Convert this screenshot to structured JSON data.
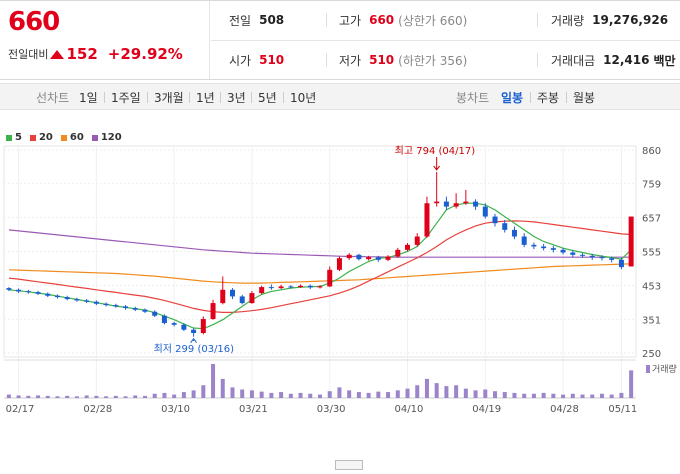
{
  "header": {
    "price": "660",
    "change_label": "전일대비",
    "change_value": "152",
    "change_pct": "+29.92%"
  },
  "stats": {
    "prev_label": "전일",
    "prev_value": "508",
    "high_label": "고가",
    "high_value": "660",
    "high_sub": "(상한가 660)",
    "volume_label": "거래량",
    "volume_value": "19,276,926",
    "open_label": "시가",
    "open_value": "510",
    "low_label": "저가",
    "low_value": "510",
    "low_sub": "(하한가 356)",
    "amount_label": "거래대금",
    "amount_value": "12,416",
    "amount_unit": "백만"
  },
  "tabs": {
    "line_label": "선차트",
    "line_periods": [
      "1일",
      "1주일",
      "3개월",
      "1년",
      "3년",
      "5년",
      "10년"
    ],
    "candle_label": "봉차트",
    "candle_periods": [
      "일봉",
      "주봉",
      "월봉"
    ],
    "active_candle": "일봉"
  },
  "colors": {
    "up": "#e0001a",
    "down": "#1a5fd0",
    "ma5": "#3cb24a",
    "ma20": "#e8413c",
    "ma60": "#f08c1e",
    "ma120": "#9b59b6",
    "volume": "#9b84c9"
  },
  "chart_data": {
    "type": "candlestick",
    "legend": [
      "5",
      "20",
      "60",
      "120"
    ],
    "y_ticks": [
      860,
      759,
      657,
      555,
      453,
      351,
      250
    ],
    "ylim": [
      250,
      860
    ],
    "x_ticks": [
      "02/17",
      "02/28",
      "03/10",
      "03/21",
      "03/30",
      "04/10",
      "04/19",
      "04/28",
      "05/11"
    ],
    "volume_label": "거래량",
    "annotations": {
      "high_label": "최고 794 (04/17)",
      "low_label": "최저 299 (03/16)"
    },
    "candles": [
      [
        445,
        440,
        448,
        436
      ],
      [
        440,
        435,
        444,
        430
      ],
      [
        436,
        433,
        440,
        428
      ],
      [
        433,
        428,
        437,
        424
      ],
      [
        428,
        422,
        432,
        418
      ],
      [
        422,
        418,
        426,
        414
      ],
      [
        418,
        412,
        422,
        408
      ],
      [
        412,
        408,
        416,
        404
      ],
      [
        408,
        404,
        412,
        400
      ],
      [
        404,
        398,
        408,
        394
      ],
      [
        398,
        394,
        402,
        390
      ],
      [
        394,
        390,
        398,
        386
      ],
      [
        390,
        385,
        394,
        380
      ],
      [
        385,
        380,
        389,
        376
      ],
      [
        380,
        374,
        384,
        370
      ],
      [
        374,
        362,
        378,
        358
      ],
      [
        362,
        340,
        366,
        336
      ],
      [
        340,
        335,
        344,
        330
      ],
      [
        335,
        320,
        340,
        316
      ],
      [
        320,
        310,
        324,
        299
      ],
      [
        310,
        352,
        360,
        306
      ],
      [
        352,
        400,
        410,
        350
      ],
      [
        400,
        440,
        480,
        396
      ],
      [
        440,
        420,
        445,
        412
      ],
      [
        420,
        400,
        425,
        396
      ],
      [
        400,
        430,
        436,
        398
      ],
      [
        430,
        448,
        452,
        426
      ],
      [
        448,
        445,
        456,
        440
      ],
      [
        445,
        450,
        455,
        442
      ],
      [
        450,
        448,
        454,
        444
      ],
      [
        448,
        452,
        456,
        446
      ],
      [
        452,
        447,
        456,
        442
      ],
      [
        447,
        450,
        454,
        444
      ],
      [
        450,
        500,
        510,
        448
      ],
      [
        500,
        535,
        540,
        496
      ],
      [
        535,
        545,
        550,
        530
      ],
      [
        545,
        532,
        548,
        528
      ],
      [
        532,
        538,
        542,
        528
      ],
      [
        538,
        530,
        542,
        524
      ],
      [
        530,
        540,
        544,
        526
      ],
      [
        540,
        560,
        566,
        536
      ],
      [
        560,
        575,
        580,
        556
      ],
      [
        575,
        600,
        610,
        570
      ],
      [
        600,
        700,
        720,
        596
      ],
      [
        700,
        705,
        794,
        690
      ],
      [
        705,
        690,
        720,
        680
      ],
      [
        690,
        700,
        730,
        684
      ],
      [
        700,
        705,
        740,
        695
      ],
      [
        705,
        690,
        712,
        680
      ],
      [
        690,
        660,
        700,
        654
      ],
      [
        660,
        640,
        668,
        630
      ],
      [
        640,
        620,
        650,
        612
      ],
      [
        620,
        600,
        630,
        592
      ],
      [
        600,
        575,
        610,
        568
      ],
      [
        575,
        570,
        582,
        562
      ],
      [
        570,
        565,
        578,
        558
      ],
      [
        565,
        560,
        572,
        552
      ],
      [
        560,
        552,
        566,
        546
      ],
      [
        552,
        545,
        558,
        538
      ],
      [
        545,
        542,
        550,
        536
      ],
      [
        542,
        538,
        548,
        530
      ],
      [
        538,
        535,
        544,
        528
      ],
      [
        535,
        530,
        540,
        522
      ],
      [
        530,
        508,
        536,
        502
      ],
      [
        510,
        660,
        660,
        510
      ]
    ],
    "ma5": [
      440,
      437,
      434,
      430,
      426,
      421,
      416,
      411,
      406,
      401,
      396,
      391,
      387,
      383,
      379,
      371,
      361,
      350,
      337,
      325,
      323,
      335,
      350,
      370,
      390,
      410,
      426,
      435,
      440,
      445,
      448,
      449,
      450,
      460,
      475,
      495,
      510,
      525,
      535,
      537,
      545,
      555,
      570,
      600,
      640,
      680,
      695,
      700,
      700,
      695,
      680,
      660,
      640,
      620,
      600,
      585,
      575,
      565,
      558,
      552,
      546,
      541,
      537,
      532,
      560
    ],
    "ma20": [
      475,
      472,
      468,
      464,
      460,
      456,
      452,
      448,
      444,
      440,
      436,
      432,
      428,
      424,
      420,
      414,
      408,
      400,
      392,
      384,
      378,
      374,
      372,
      372,
      374,
      377,
      381,
      386,
      392,
      398,
      404,
      410,
      416,
      422,
      430,
      440,
      452,
      466,
      480,
      494,
      508,
      522,
      536,
      552,
      570,
      590,
      606,
      620,
      632,
      640,
      644,
      646,
      647,
      646,
      644,
      640,
      636,
      632,
      628,
      624,
      620,
      616,
      612,
      608,
      606
    ],
    "ma60": [
      500,
      499,
      498,
      497,
      496,
      495,
      494,
      493,
      492,
      491,
      490,
      489,
      487,
      485,
      483,
      481,
      478,
      475,
      472,
      469,
      466,
      464,
      462,
      461,
      460,
      460,
      460,
      461,
      462,
      463,
      464,
      465,
      466,
      467,
      468,
      469,
      470,
      472,
      474,
      476,
      478,
      480,
      482,
      484,
      486,
      488,
      490,
      492,
      494,
      496,
      498,
      500,
      502,
      504,
      506,
      508,
      510,
      511,
      512,
      513,
      514,
      515,
      516,
      517,
      518
    ],
    "ma120": [
      620,
      617,
      614,
      611,
      608,
      605,
      602,
      599,
      596,
      593,
      590,
      587,
      584,
      581,
      578,
      575,
      572,
      569,
      566,
      563,
      560,
      558,
      556,
      554,
      552,
      550,
      549,
      548,
      547,
      546,
      545,
      544,
      543,
      542,
      541,
      540,
      540,
      539,
      539,
      538,
      538,
      538,
      538,
      538,
      538,
      538,
      538,
      538,
      538,
      538,
      538,
      538,
      538,
      538,
      538,
      538,
      538,
      538,
      538,
      538,
      538,
      538,
      538,
      538,
      538
    ],
    "volume": [
      8,
      6,
      5,
      6,
      5,
      4,
      5,
      4,
      6,
      5,
      4,
      5,
      4,
      6,
      5,
      10,
      12,
      8,
      14,
      18,
      30,
      80,
      45,
      25,
      20,
      18,
      15,
      12,
      14,
      10,
      12,
      10,
      8,
      16,
      25,
      18,
      14,
      12,
      15,
      14,
      18,
      22,
      30,
      45,
      35,
      28,
      30,
      22,
      18,
      20,
      16,
      14,
      12,
      10,
      10,
      12,
      10,
      8,
      10,
      8,
      8,
      10,
      8,
      12,
      65
    ]
  }
}
